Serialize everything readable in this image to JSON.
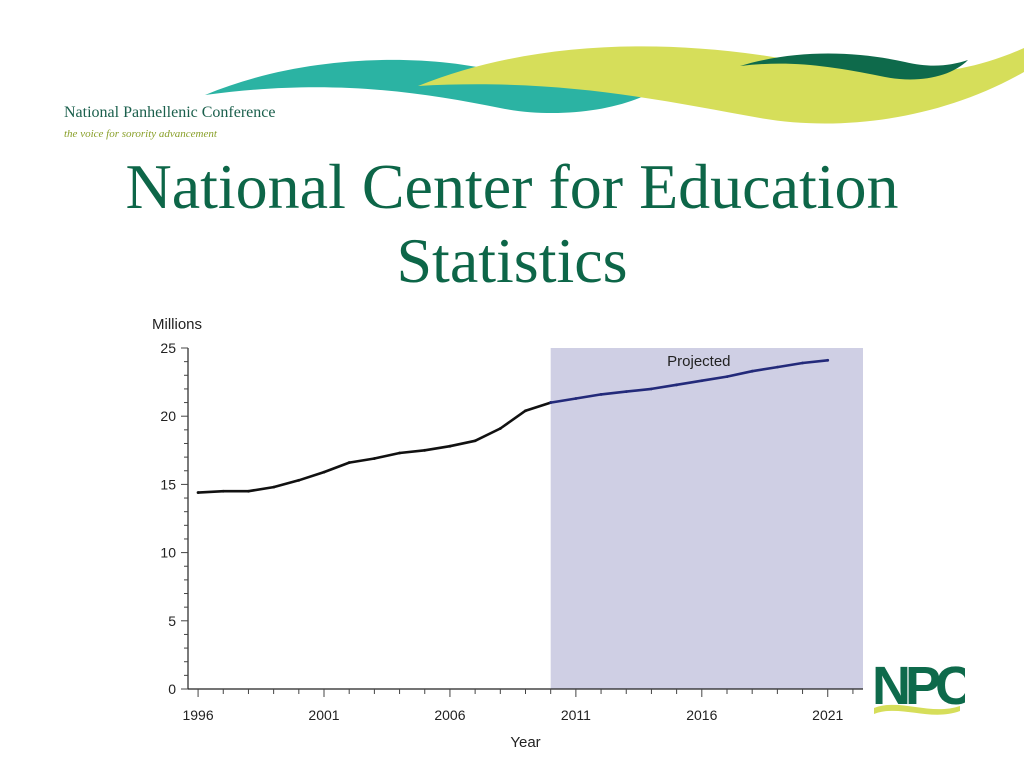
{
  "header": {
    "org_name": "National Panhellenic Conference",
    "tagline": "the voice for sorority advancement"
  },
  "slide": {
    "title_line1": "National Center for Education",
    "title_line2": "Statistics"
  },
  "logo": {
    "letters": "NPC"
  },
  "colors": {
    "title": "#0d6648",
    "teal": "#2bb3a3",
    "lime": "#d6de5a",
    "dark_green": "#0e6a4b",
    "actual_line": "#111111",
    "projected_line": "#232a7a",
    "projected_shade": "#cfcfe4"
  },
  "chart_data": {
    "type": "line",
    "ylabel": "Millions",
    "xlabel": "Year",
    "xlim": [
      1995.6,
      2022.4
    ],
    "ylim": [
      0,
      25
    ],
    "x_ticks": [
      1996,
      2001,
      2006,
      2011,
      2016,
      2021
    ],
    "y_ticks": [
      0,
      5,
      10,
      15,
      20,
      25
    ],
    "projected_region": {
      "label": "Projected",
      "x_start": 2010,
      "x_end": 2022.5
    },
    "series": [
      {
        "kind": "actual",
        "x": [
          1996,
          1997,
          1998,
          1999,
          2000,
          2001,
          2002,
          2003,
          2004,
          2005,
          2006,
          2007,
          2008,
          2009,
          2010
        ],
        "y": [
          14.4,
          14.5,
          14.5,
          14.8,
          15.3,
          15.9,
          16.6,
          16.9,
          17.3,
          17.5,
          17.8,
          18.2,
          19.1,
          20.4,
          21.0
        ]
      },
      {
        "kind": "projected",
        "x": [
          2010,
          2011,
          2012,
          2013,
          2014,
          2015,
          2016,
          2017,
          2018,
          2019,
          2020,
          2021
        ],
        "y": [
          21.0,
          21.3,
          21.6,
          21.8,
          22.0,
          22.3,
          22.6,
          22.9,
          23.3,
          23.6,
          23.9,
          24.1
        ]
      }
    ]
  }
}
